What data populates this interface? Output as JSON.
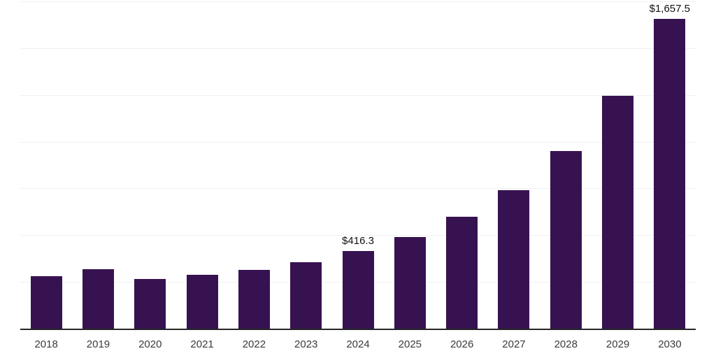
{
  "chart_data": {
    "type": "bar",
    "categories": [
      "2018",
      "2019",
      "2020",
      "2021",
      "2022",
      "2023",
      "2024",
      "2025",
      "2026",
      "2027",
      "2028",
      "2029",
      "2030"
    ],
    "values": [
      279,
      318,
      264,
      288,
      316,
      357,
      416.3,
      491,
      597,
      742,
      949,
      1244,
      1657.5
    ],
    "data_labels": [
      null,
      null,
      null,
      null,
      null,
      null,
      "$416.3",
      null,
      null,
      null,
      null,
      null,
      "$1,657.5"
    ],
    "ylim": [
      0,
      1750
    ],
    "grid_step": 250,
    "grid": true,
    "legend": "none",
    "colors": {
      "bar": "#371251",
      "gridline": "#f0f0f0",
      "axis": "#262626",
      "tick_label": "#3a3a3a",
      "value_label": "#111111"
    }
  }
}
